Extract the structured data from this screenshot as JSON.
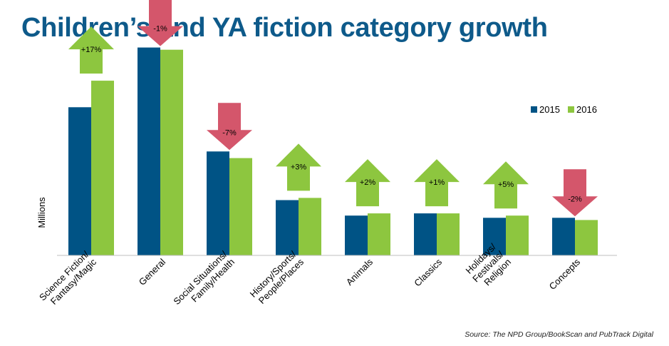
{
  "chart_data": {
    "type": "bar",
    "title": "Children’s and YA fiction category growth",
    "ylabel": "Millions",
    "xlabel": "",
    "ylim": [
      0,
      100
    ],
    "grid": false,
    "legend_position": "top-right",
    "categories": [
      [
        "Science Fiction/",
        "Fantasy/Magic"
      ],
      [
        "General"
      ],
      [
        "Social Situations/",
        "Family/Health"
      ],
      [
        "History/Sports/",
        "People/Places"
      ],
      [
        "Animals"
      ],
      [
        "Classics"
      ],
      [
        "Holidays/",
        "Festivals/",
        "Religion"
      ],
      [
        "Concepts"
      ]
    ],
    "series": [
      {
        "name": "2015",
        "color": "#005385",
        "values": [
          67,
          94,
          47,
          25,
          18,
          19,
          17,
          17
        ]
      },
      {
        "name": "2016",
        "color": "#8dc63f",
        "values": [
          79,
          93,
          44,
          26,
          19,
          19,
          18,
          16
        ]
      }
    ],
    "annotations": [
      {
        "text": "+17%",
        "direction": "up"
      },
      {
        "text": "-1%",
        "direction": "down"
      },
      {
        "text": "-7%",
        "direction": "down"
      },
      {
        "text": "+3%",
        "direction": "up"
      },
      {
        "text": "+2%",
        "direction": "up"
      },
      {
        "text": "+1%",
        "direction": "up"
      },
      {
        "text": "+5%",
        "direction": "up"
      },
      {
        "text": "-2%",
        "direction": "down"
      }
    ],
    "arrow_colors": {
      "up": "#8dc63f",
      "down": "#d4566b"
    }
  },
  "source": "Source: The NPD Group/BookScan and PubTrack Digital"
}
